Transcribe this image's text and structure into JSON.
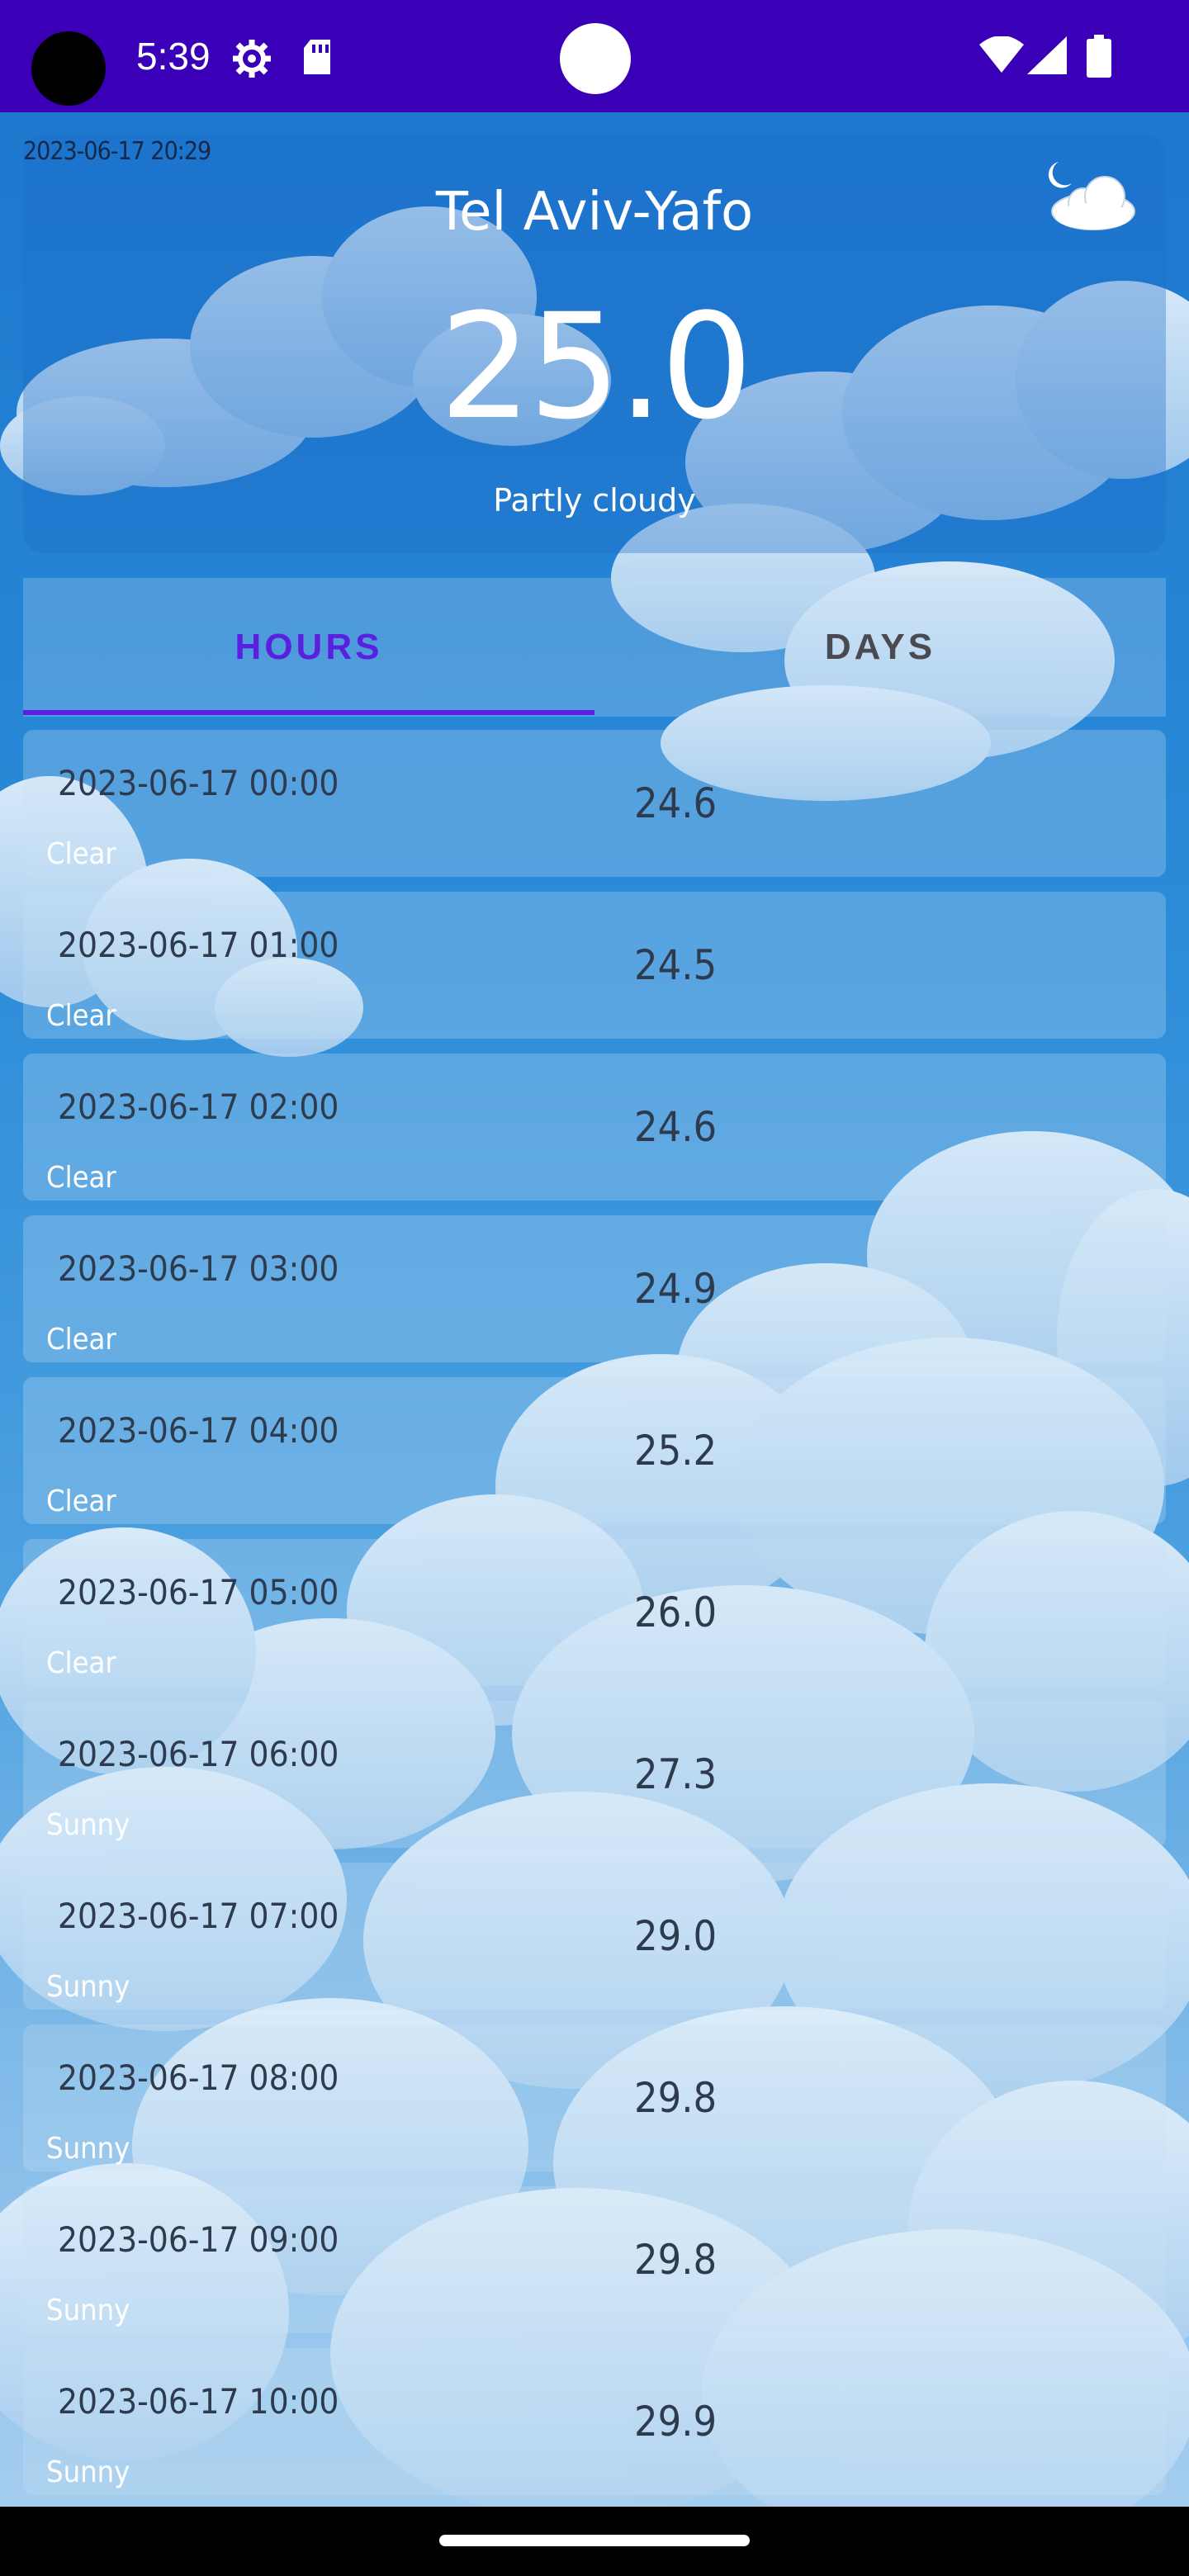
{
  "status_bar": {
    "time": "5:39",
    "icons": [
      "gear-icon",
      "sd-card-icon",
      "wifi-icon",
      "signal-icon",
      "battery-icon"
    ]
  },
  "header": {
    "updated_time": "2023-06-17 20:29",
    "city": "Tel Aviv-Yafo",
    "temperature": "25.0",
    "condition": "Partly cloudy",
    "icon": "partly-cloudy-night-icon"
  },
  "tabs": [
    {
      "label": "HOURS",
      "selected": true
    },
    {
      "label": "DAYS",
      "selected": false
    }
  ],
  "hours": [
    {
      "time": "2023-06-17 00:00",
      "temp": "24.6",
      "condition": "Clear"
    },
    {
      "time": "2023-06-17 01:00",
      "temp": "24.5",
      "condition": "Clear"
    },
    {
      "time": "2023-06-17 02:00",
      "temp": "24.6",
      "condition": "Clear"
    },
    {
      "time": "2023-06-17 03:00",
      "temp": "24.9",
      "condition": "Clear"
    },
    {
      "time": "2023-06-17 04:00",
      "temp": "25.2",
      "condition": "Clear"
    },
    {
      "time": "2023-06-17 05:00",
      "temp": "26.0",
      "condition": "Clear"
    },
    {
      "time": "2023-06-17 06:00",
      "temp": "27.3",
      "condition": "Sunny"
    },
    {
      "time": "2023-06-17 07:00",
      "temp": "29.0",
      "condition": "Sunny"
    },
    {
      "time": "2023-06-17 08:00",
      "temp": "29.8",
      "condition": "Sunny"
    },
    {
      "time": "2023-06-17 09:00",
      "temp": "29.8",
      "condition": "Sunny"
    },
    {
      "time": "2023-06-17 10:00",
      "temp": "29.9",
      "condition": "Sunny"
    }
  ],
  "colors": {
    "status_bar": "#3a00b8",
    "tab_accent": "#5b1fe0",
    "sky": "#2a86d4"
  }
}
